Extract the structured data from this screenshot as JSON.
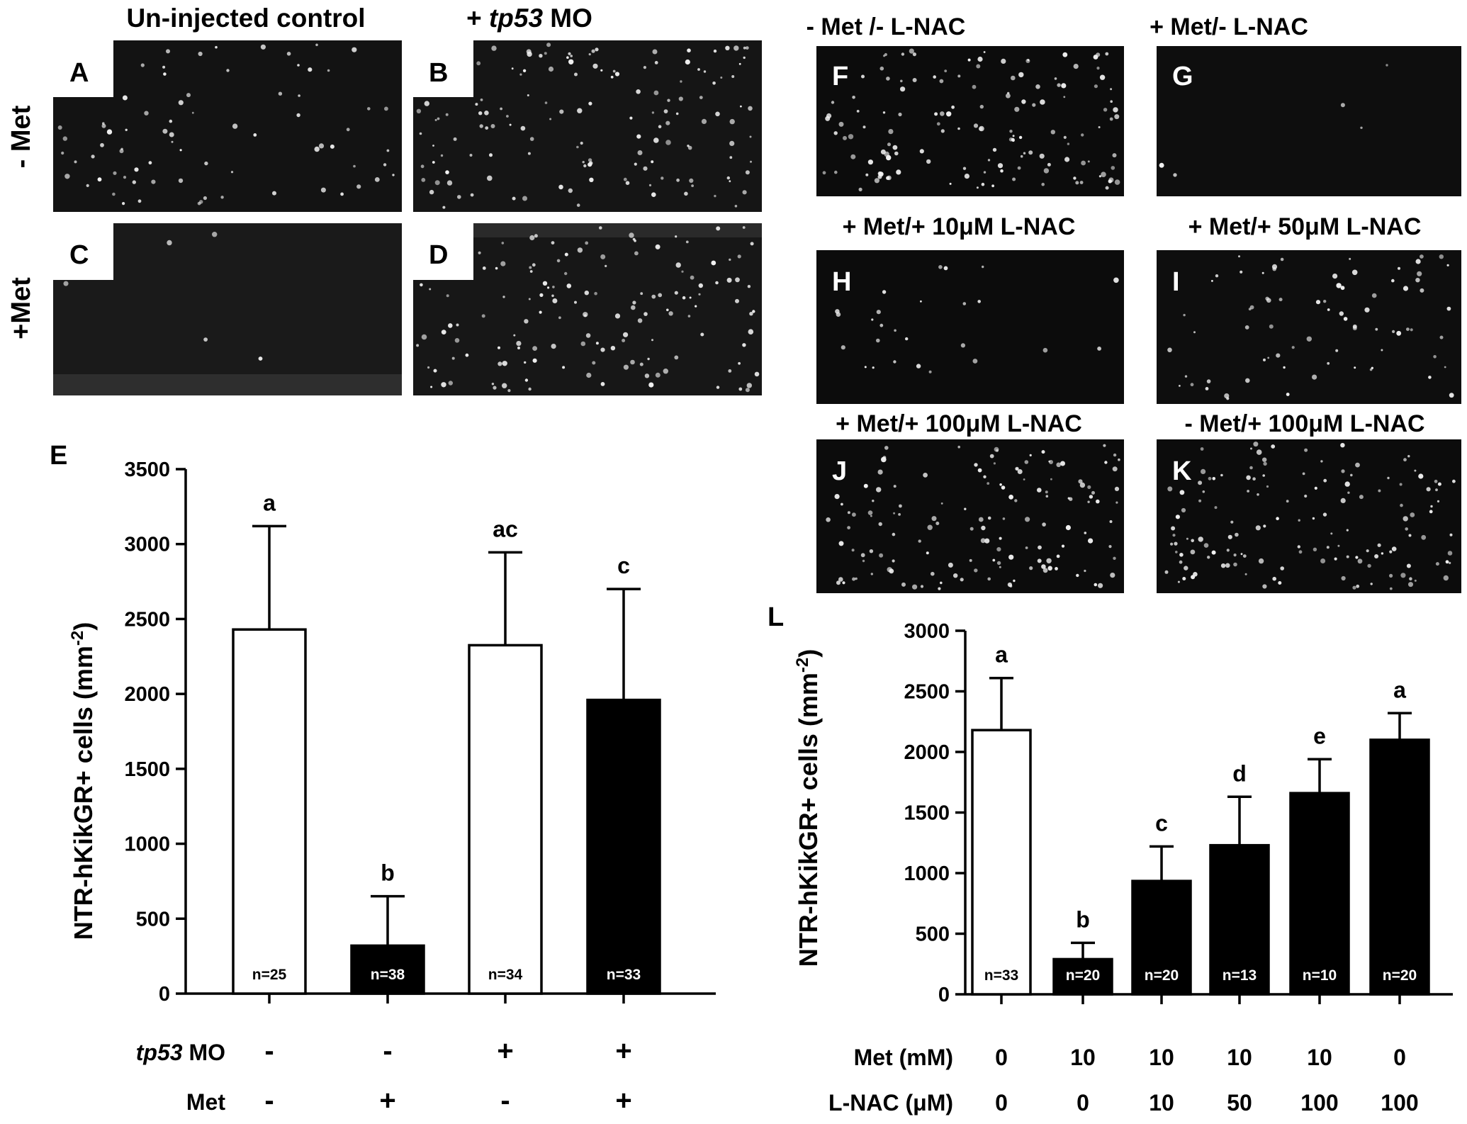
{
  "micrographs_left": {
    "col_titles": [
      "Un-injected control",
      "+ tp53 MO"
    ],
    "col_title_italic_part": "tp53",
    "row_labels": [
      "- Met",
      "+Met"
    ],
    "panels": [
      {
        "label": "A",
        "cell_density": "medium"
      },
      {
        "label": "B",
        "cell_density": "high"
      },
      {
        "label": "C",
        "cell_density": "very low"
      },
      {
        "label": "D",
        "cell_density": "high"
      }
    ]
  },
  "micrographs_right": {
    "panels": [
      {
        "label": "F",
        "title": "- Met /- L-NAC",
        "cell_density": "high"
      },
      {
        "label": "G",
        "title": "+ Met/- L-NAC",
        "cell_density": "very low"
      },
      {
        "label": "H",
        "title": "+ Met/+ 10μM L-NAC",
        "cell_density": "low"
      },
      {
        "label": "I",
        "title": "+ Met/+ 50μM L-NAC",
        "cell_density": "medium"
      },
      {
        "label": "J",
        "title": "+ Met/+ 100μM L-NAC",
        "cell_density": "high"
      },
      {
        "label": "K",
        "title": "- Met/+ 100μM L-NAC",
        "cell_density": "high"
      }
    ]
  },
  "chart_data": [
    {
      "panel": "E",
      "type": "bar",
      "ylabel": "NTR-hKikGR+ cells (mm-2)",
      "ylim": [
        0,
        3500
      ],
      "yticks": [
        0,
        500,
        1000,
        1500,
        2000,
        2500,
        3000,
        3500
      ],
      "values": [
        2430,
        320,
        2325,
        1960
      ],
      "errors": [
        690,
        330,
        620,
        740
      ],
      "bar_fill": [
        "white",
        "black",
        "white",
        "black"
      ],
      "sig_letters": [
        "a",
        "b",
        "ac",
        "c"
      ],
      "n_labels": [
        "n=25",
        "n=38",
        "n=34",
        "n=33"
      ],
      "conditions": [
        {
          "label": "tp53 MO",
          "italic_part": "tp53",
          "values": [
            "-",
            "-",
            "+",
            "+"
          ]
        },
        {
          "label": "Met",
          "values": [
            "-",
            "+",
            "-",
            "+"
          ]
        }
      ]
    },
    {
      "panel": "L",
      "type": "bar",
      "ylabel": "NTR-hKikGR+ cells (mm-2)",
      "ylim": [
        0,
        3000
      ],
      "yticks": [
        0,
        500,
        1000,
        1500,
        2000,
        2500,
        3000
      ],
      "values": [
        2180,
        290,
        935,
        1230,
        1660,
        2100
      ],
      "errors": [
        430,
        135,
        285,
        400,
        280,
        220
      ],
      "bar_fill": [
        "white",
        "black",
        "black",
        "black",
        "black",
        "black"
      ],
      "sig_letters": [
        "a",
        "b",
        "c",
        "d",
        "e",
        "a"
      ],
      "n_labels": [
        "n=33",
        "n=20",
        "n=20",
        "n=13",
        "n=10",
        "n=20"
      ],
      "conditions": [
        {
          "label": "Met (mM)",
          "values": [
            "0",
            "10",
            "10",
            "10",
            "10",
            "0"
          ]
        },
        {
          "label": "L-NAC (μM)",
          "values": [
            "0",
            "0",
            "10",
            "50",
            "100",
            "100"
          ]
        }
      ]
    }
  ],
  "colors": {
    "micrograph_bg": "#131313",
    "cell_spot": "#f2f2f2",
    "bar_black": "#000000",
    "bar_white": "#ffffff"
  }
}
